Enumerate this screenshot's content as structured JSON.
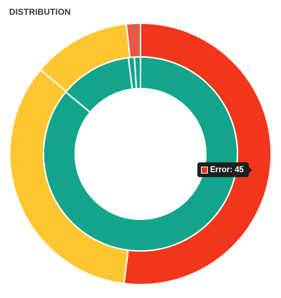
{
  "panel": {
    "title": "DISTRIBUTION"
  },
  "chart_data": {
    "type": "pie",
    "series": [
      {
        "ring": "outer",
        "slices": [
          {
            "label": "Error",
            "value": 45,
            "color": "#f2361c"
          },
          {
            "label": "",
            "value": 29.5,
            "color": "#ffc630"
          },
          {
            "label": "",
            "value": 10.5,
            "color": "#ffc630"
          },
          {
            "label": "",
            "value": 1.5,
            "color": "#e35b43"
          }
        ]
      },
      {
        "ring": "inner",
        "slices": [
          {
            "label": "",
            "value": 86,
            "color": "#13a58c"
          },
          {
            "label": "",
            "value": 12,
            "color": "#13a58c"
          },
          {
            "label": "",
            "value": 1,
            "color": "#13a58c"
          },
          {
            "label": "",
            "value": 1,
            "color": "#13a58c"
          }
        ]
      }
    ]
  },
  "tooltip": {
    "label": "Error",
    "value": "45",
    "text": "Error: 45",
    "color": "#f2361c"
  }
}
